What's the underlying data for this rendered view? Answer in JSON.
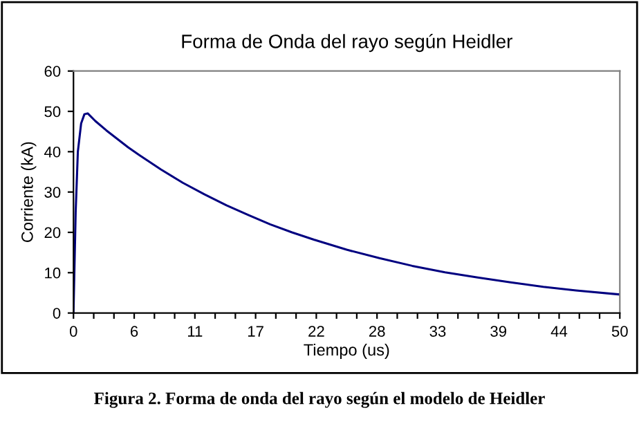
{
  "chart_data": {
    "type": "line",
    "title": "Forma de Onda del rayo según Heidler",
    "xlabel": "Tiempo (us)",
    "ylabel": "Corriente (kA)",
    "annotations": [
      "Figura 2. Forma de onda del rayo según el modelo de Heidler"
    ],
    "x": [
      0,
      0.2,
      0.4,
      0.7,
      1.0,
      1.3,
      2,
      3,
      4,
      5,
      6,
      8,
      10,
      12,
      14,
      16,
      18,
      20,
      22,
      25,
      28,
      31,
      34,
      37,
      40,
      43,
      46,
      50
    ],
    "series": [
      {
        "color": "#000080",
        "values": [
          0,
          25,
          40,
          47,
          49.3,
          49.5,
          47.6,
          45.3,
          43.2,
          41.1,
          39.2,
          35.6,
          32.3,
          29.4,
          26.7,
          24.3,
          22.0,
          20.0,
          18.2,
          15.7,
          13.6,
          11.7,
          10.1,
          8.8,
          7.6,
          6.5,
          5.6,
          4.6
        ]
      }
    ],
    "xlim": [
      0,
      50
    ],
    "ylim": [
      0,
      60
    ],
    "yticks": [
      0,
      10,
      20,
      30,
      40,
      50,
      60
    ],
    "xticks": [
      0,
      {
        "value": 1.852,
        "label": null
      },
      {
        "value": 3.704,
        "label": null
      },
      {
        "value": 5.556,
        "label": "6"
      },
      {
        "value": 7.407,
        "label": null
      },
      {
        "value": 9.259,
        "label": null
      },
      {
        "value": 11.111,
        "label": "11"
      },
      {
        "value": 12.963,
        "label": null
      },
      {
        "value": 14.815,
        "label": null
      },
      {
        "value": 16.667,
        "label": "17"
      },
      {
        "value": 18.519,
        "label": null
      },
      {
        "value": 20.37,
        "label": null
      },
      {
        "value": 22.222,
        "label": "22"
      },
      {
        "value": 24.074,
        "label": null
      },
      {
        "value": 25.926,
        "label": null
      },
      {
        "value": 27.778,
        "label": "28"
      },
      {
        "value": 29.63,
        "label": null
      },
      {
        "value": 31.481,
        "label": null
      },
      {
        "value": 33.333,
        "label": "33"
      },
      {
        "value": 35.185,
        "label": null
      },
      {
        "value": 37.037,
        "label": null
      },
      {
        "value": 38.889,
        "label": "39"
      },
      {
        "value": 40.741,
        "label": null
      },
      {
        "value": 42.593,
        "label": null
      },
      {
        "value": 44.444,
        "label": "44"
      },
      {
        "value": 46.296,
        "label": null
      },
      {
        "value": 48.148,
        "label": null
      },
      50
    ],
    "grid": false,
    "legend": false,
    "marker": "none",
    "line_style": "solid"
  }
}
